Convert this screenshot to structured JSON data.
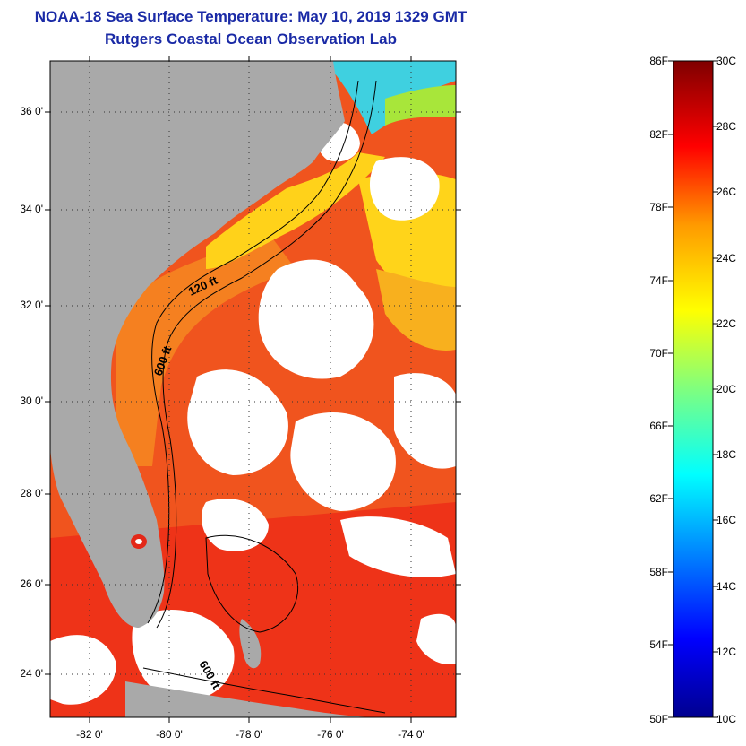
{
  "title": {
    "line1": "NOAA-18 Sea Surface Temperature:  May 10, 2019 1329 GMT",
    "line2": "Rutgers Coastal Ocean Observation Lab"
  },
  "axes": {
    "lat_labels": [
      "36 0'",
      "34 0'",
      "32 0'",
      "30 0'",
      "28 0'",
      "26 0'",
      "24 0'"
    ],
    "lon_labels": [
      "-82 0'",
      "-80 0'",
      "-78 0'",
      "-76 0'",
      "-74 0'"
    ]
  },
  "contours": {
    "label_120": "120 ft",
    "label_600a": "600 ft",
    "label_600b": "600 ft"
  },
  "colorbar": {
    "fahrenheit": [
      "86F",
      "82F",
      "78F",
      "74F",
      "70F",
      "66F",
      "62F",
      "58F",
      "54F",
      "50F"
    ],
    "celsius": [
      "30C",
      "28C",
      "26C",
      "24C",
      "22C",
      "20C",
      "18C",
      "16C",
      "14C",
      "12C",
      "10C"
    ]
  },
  "colors": {
    "title": "#1a2aa6",
    "land": "#a9a9a9",
    "sst_warm": "#f0421c",
    "sst_mid": "#f7731e",
    "sst_cool": "#ffd41a"
  }
}
